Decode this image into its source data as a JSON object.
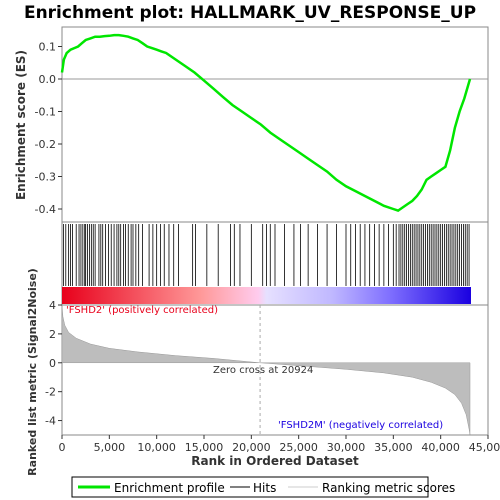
{
  "chart_data": {
    "type": "line",
    "title": "Enrichment plot: HALLMARK_UV_RESPONSE_UP",
    "upper_panel": {
      "ylabel": "Enrichment score (ES)",
      "ylim": [
        -0.44,
        0.16
      ],
      "yticks": [
        "0.1",
        "0.0",
        "-0.1",
        "-0.2",
        "-0.3",
        "-0.4"
      ],
      "ytick_values": [
        0.1,
        0.0,
        -0.1,
        -0.2,
        -0.3,
        -0.4
      ],
      "series": [
        {
          "name": "Enrichment profile",
          "color": "#00e600",
          "x": [
            0,
            200,
            500,
            900,
            1300,
            1700,
            2100,
            2500,
            3000,
            3500,
            4000,
            4500,
            5000,
            5500,
            6000,
            6500,
            7000,
            7500,
            8000,
            8500,
            9000,
            9500,
            10000,
            10500,
            11000,
            12000,
            13000,
            14000,
            15000,
            16000,
            17000,
            18000,
            19000,
            20000,
            21000,
            22000,
            23000,
            24000,
            25000,
            26000,
            27000,
            28000,
            29000,
            30000,
            31000,
            32000,
            33000,
            34000,
            35000,
            35500,
            36000,
            36500,
            37000,
            37500,
            38000,
            38500,
            39000,
            39500,
            40000,
            40500,
            41000,
            41500,
            42000,
            42500,
            42900,
            43100
          ],
          "y": [
            0.02,
            0.06,
            0.08,
            0.09,
            0.095,
            0.1,
            0.11,
            0.12,
            0.125,
            0.13,
            0.13,
            0.132,
            0.133,
            0.135,
            0.135,
            0.133,
            0.13,
            0.125,
            0.12,
            0.11,
            0.1,
            0.095,
            0.09,
            0.085,
            0.08,
            0.06,
            0.04,
            0.02,
            -0.005,
            -0.03,
            -0.055,
            -0.08,
            -0.1,
            -0.12,
            -0.14,
            -0.165,
            -0.185,
            -0.205,
            -0.225,
            -0.245,
            -0.265,
            -0.285,
            -0.31,
            -0.33,
            -0.345,
            -0.36,
            -0.375,
            -0.39,
            -0.4,
            -0.405,
            -0.395,
            -0.385,
            -0.375,
            -0.36,
            -0.34,
            -0.31,
            -0.3,
            -0.29,
            -0.28,
            -0.27,
            -0.22,
            -0.15,
            -0.1,
            -0.06,
            -0.02,
            0.0
          ]
        }
      ]
    },
    "hits_panel": {
      "hit_positions": [
        150,
        400,
        700,
        900,
        1100,
        1500,
        1800,
        2000,
        2200,
        2400,
        2500,
        2700,
        2900,
        3100,
        3300,
        3500,
        3900,
        4100,
        4300,
        4600,
        4900,
        5200,
        5500,
        5800,
        6000,
        6200,
        6500,
        6700,
        7000,
        7300,
        7500,
        7800,
        8100,
        8500,
        9200,
        9600,
        10000,
        10400,
        10800,
        11300,
        11800,
        12300,
        13800,
        14100,
        15300,
        16500,
        17800,
        18200,
        18800,
        20000,
        21200,
        21600,
        22000,
        22500,
        23500,
        24500,
        25200,
        26000,
        27000,
        28000,
        29000,
        30000,
        30500,
        31000,
        31500,
        32000,
        32500,
        33000,
        33500,
        34000,
        34500,
        35000,
        35300,
        35600,
        35800,
        36000,
        36200,
        36400,
        36600,
        36800,
        37000,
        37200,
        37400,
        37600,
        37800,
        38000,
        38200,
        38400,
        38600,
        38800,
        39000,
        39200,
        39400,
        39600,
        39800,
        40000,
        40200,
        40400,
        40600,
        40800,
        41000,
        41200,
        41400,
        41600,
        41800,
        42000,
        42200,
        42400,
        42600,
        42800,
        43000
      ]
    },
    "bottom_panel": {
      "ylabel": "Ranked list metric (Signal2Noise)",
      "xlabel": "Rank in Ordered Dataset",
      "ylim": [
        -5,
        4
      ],
      "yticks": [
        "4",
        "2",
        "0",
        "-2",
        "-4"
      ],
      "ytick_values": [
        4,
        2,
        0,
        -2,
        -4
      ],
      "metric_profile": {
        "x": [
          0,
          100,
          300,
          700,
          1500,
          3000,
          5000,
          8000,
          12000,
          16000,
          20924,
          25000,
          30000,
          34000,
          37000,
          39000,
          40500,
          41500,
          42200,
          42700,
          43000,
          43100
        ],
        "y": [
          4.0,
          3.2,
          2.6,
          2.1,
          1.7,
          1.3,
          1.0,
          0.75,
          0.5,
          0.3,
          0.0,
          -0.2,
          -0.45,
          -0.7,
          -1.0,
          -1.35,
          -1.75,
          -2.2,
          -2.8,
          -3.6,
          -4.6,
          -5.0
        ]
      },
      "zero_cross_label": "Zero cross at 20924",
      "zero_cross": 20924,
      "pos_label": "'FSHD2' (positively correlated)",
      "neg_label": "'FSHD2M' (negatively correlated)"
    },
    "xlim": [
      0,
      45000
    ],
    "xticks": [
      "0",
      "5,000",
      "10,000",
      "15,000",
      "20,000",
      "25,000",
      "30,000",
      "35,000",
      "40,000",
      "45,000"
    ],
    "xtick_values": [
      0,
      5000,
      10000,
      15000,
      20000,
      25000,
      30000,
      35000,
      40000,
      45000
    ],
    "n_genes": 43100,
    "legend": {
      "placement": "bottom",
      "entries": [
        "Enrichment profile",
        "Hits",
        "Ranking metric scores"
      ]
    },
    "colors": {
      "profile": "#00e600",
      "pos": "#e8001b",
      "neg": "#1a00e0",
      "metric": "#bdbdbd",
      "pos_text": "#e8001b",
      "neg_text": "#1a00e0"
    }
  }
}
